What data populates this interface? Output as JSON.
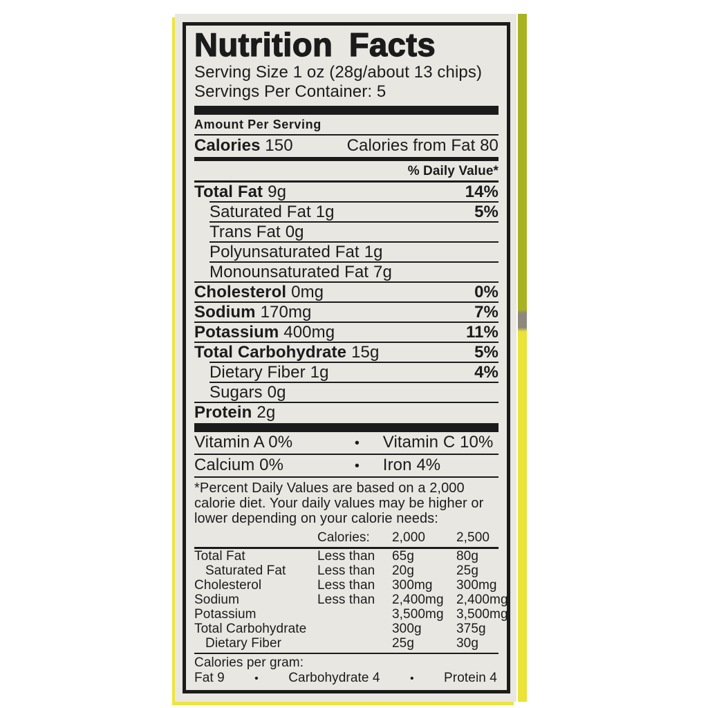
{
  "label": {
    "title": "Nutrition Facts",
    "serving_size": "Serving Size 1 oz (28g/about 13 chips)",
    "servings_per_container": "Servings Per Container: 5",
    "amount_per_serving": "Amount Per Serving",
    "calories_label": "Calories",
    "calories_value": "150",
    "calories_from_fat": "Calories from Fat 80",
    "daily_value_header": "% Daily Value*",
    "bullet": "•",
    "rows": [
      {
        "name": "Total Fat",
        "amount": "9g",
        "dv": "14%"
      },
      {
        "name": "Saturated Fat",
        "amount": "1g",
        "dv": "5%"
      },
      {
        "name": "Trans Fat",
        "amount": "0g",
        "dv": ""
      },
      {
        "name": "Polyunsaturated Fat",
        "amount": "1g",
        "dv": ""
      },
      {
        "name": "Monounsaturated Fat",
        "amount": "7g",
        "dv": ""
      },
      {
        "name": "Cholesterol",
        "amount": "0mg",
        "dv": "0%"
      },
      {
        "name": "Sodium",
        "amount": "170mg",
        "dv": "7%"
      },
      {
        "name": "Potassium",
        "amount": "400mg",
        "dv": "11%"
      },
      {
        "name": "Total Carbohydrate",
        "amount": "15g",
        "dv": "5%"
      },
      {
        "name": "Dietary Fiber",
        "amount": "1g",
        "dv": "4%"
      },
      {
        "name": "Sugars",
        "amount": "0g",
        "dv": ""
      },
      {
        "name": "Protein",
        "amount": "2g",
        "dv": ""
      }
    ],
    "micronutrients": [
      {
        "left": "Vitamin A 0%",
        "right": "Vitamin C 10%"
      },
      {
        "left": "Calcium 0%",
        "right": "Iron 4%"
      }
    ],
    "footnote": "*Percent Daily Values are based on a 2,000 calorie diet. Your daily values may be higher or lower depending on your calorie needs:",
    "dv_table": {
      "header": {
        "label": "Calories:",
        "col2000": "2,000",
        "col2500": "2,500"
      },
      "rows": [
        {
          "name": "Total Fat",
          "qualifier": "Less than",
          "v2000": "65g",
          "v2500": "80g"
        },
        {
          "name": "Saturated Fat",
          "qualifier": "Less than",
          "v2000": "20g",
          "v2500": "25g"
        },
        {
          "name": "Cholesterol",
          "qualifier": "Less than",
          "v2000": "300mg",
          "v2500": "300mg"
        },
        {
          "name": "Sodium",
          "qualifier": "Less than",
          "v2000": "2,400mg",
          "v2500": "2,400mg"
        },
        {
          "name": "Potassium",
          "qualifier": "",
          "v2000": "3,500mg",
          "v2500": "3,500mg"
        },
        {
          "name": "Total Carbohydrate",
          "qualifier": "",
          "v2000": "300g",
          "v2500": "375g"
        },
        {
          "name": "Dietary Fiber",
          "qualifier": "",
          "v2000": "25g",
          "v2500": "30g"
        }
      ]
    },
    "calories_per_gram": {
      "label": "Calories per gram:",
      "items": [
        "Fat 9",
        "Carbohydrate 4",
        "Protein 4"
      ]
    }
  },
  "colors": {
    "page_background": "#ffffff",
    "label_background": "#e9e7e2",
    "label_ink": "#1b1b1b",
    "stripe_olive_top": "#a9b223",
    "stripe_gray_patch": "#8e897c",
    "stripe_yellow_bottom": "#e9e33a",
    "edge_yellow": "#efe43c"
  }
}
